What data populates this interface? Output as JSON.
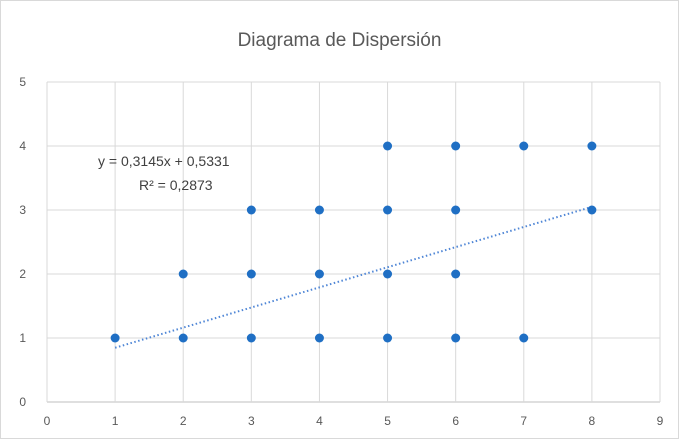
{
  "chart_data": {
    "type": "scatter",
    "title": "Diagrama de Dispersión",
    "xlabel": "",
    "ylabel": "",
    "xlim": [
      0,
      9
    ],
    "ylim": [
      0,
      5
    ],
    "x_ticks": [
      "0",
      "1",
      "2",
      "3",
      "4",
      "5",
      "6",
      "7",
      "8",
      "9"
    ],
    "y_ticks": [
      "0",
      "1",
      "2",
      "3",
      "4",
      "5"
    ],
    "grid": true,
    "marker_color": "#1f6fc4",
    "trendline_color": "#4f86d6",
    "points": [
      {
        "x": 1,
        "y": 1
      },
      {
        "x": 2,
        "y": 1
      },
      {
        "x": 2,
        "y": 2
      },
      {
        "x": 3,
        "y": 1
      },
      {
        "x": 3,
        "y": 2
      },
      {
        "x": 3,
        "y": 3
      },
      {
        "x": 4,
        "y": 1
      },
      {
        "x": 4,
        "y": 2
      },
      {
        "x": 4,
        "y": 3
      },
      {
        "x": 5,
        "y": 1
      },
      {
        "x": 5,
        "y": 2
      },
      {
        "x": 5,
        "y": 3
      },
      {
        "x": 5,
        "y": 4
      },
      {
        "x": 6,
        "y": 1
      },
      {
        "x": 6,
        "y": 2
      },
      {
        "x": 6,
        "y": 3
      },
      {
        "x": 6,
        "y": 4
      },
      {
        "x": 7,
        "y": 1
      },
      {
        "x": 7,
        "y": 4
      },
      {
        "x": 8,
        "y": 3
      },
      {
        "x": 8,
        "y": 4
      }
    ],
    "trendline": {
      "type": "linear",
      "slope": 0.3145,
      "intercept": 0.5331,
      "x_range": [
        1,
        8
      ],
      "equation_label": "y = 0,3145x + 0,5331",
      "r2_label": "R² = 0,2873"
    }
  }
}
